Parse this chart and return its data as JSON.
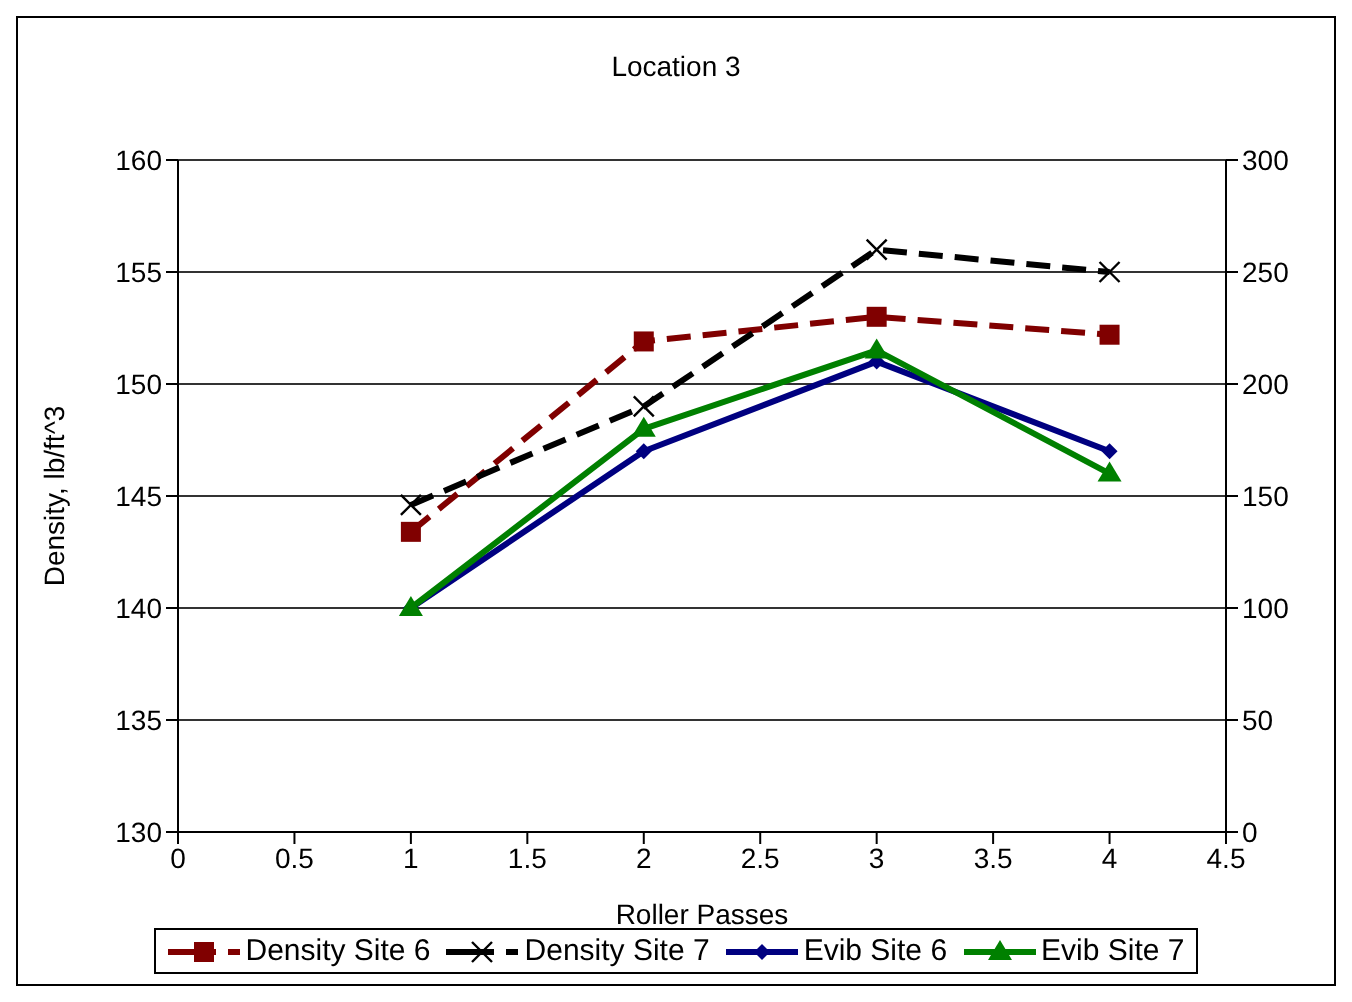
{
  "chart_data": {
    "type": "line",
    "title": "Location 3",
    "xlabel": "Roller Passes",
    "ylabel": "Density, lb/ft^3",
    "x": [
      1,
      2,
      3,
      4
    ],
    "series": [
      {
        "name": "Density Site 6",
        "color": "#800000",
        "values": [
          143.4,
          151.9,
          153.0,
          152.2
        ],
        "marker": "square",
        "line_style": "dashed"
      },
      {
        "name": "Density Site 7",
        "color": "#000000",
        "values": [
          144.6,
          149.0,
          156.0,
          155.0
        ],
        "marker": "cross",
        "line_style": "dashed"
      },
      {
        "name": "Evib Site 6",
        "color": "#000080",
        "values": [
          100,
          170,
          210,
          170
        ],
        "marker": "diamond",
        "line_style": "solid",
        "axis": "y2"
      },
      {
        "name": "Evib Site 7",
        "color": "#008000",
        "values": [
          100,
          180,
          215,
          160
        ],
        "marker": "triangle",
        "line_style": "solid",
        "axis": "y2"
      }
    ],
    "xlim": [
      0,
      4.5
    ],
    "xticks": [
      0,
      0.5,
      1,
      1.5,
      2,
      2.5,
      3,
      3.5,
      4,
      4.5
    ],
    "ylim": [
      130,
      160
    ],
    "yticks": [
      130,
      135,
      140,
      145,
      150,
      155,
      160
    ],
    "y2lim": [
      0,
      300
    ],
    "y2ticks": [
      0,
      50,
      100,
      150,
      200,
      250,
      300
    ],
    "grid": "y",
    "legend": "bottom"
  }
}
